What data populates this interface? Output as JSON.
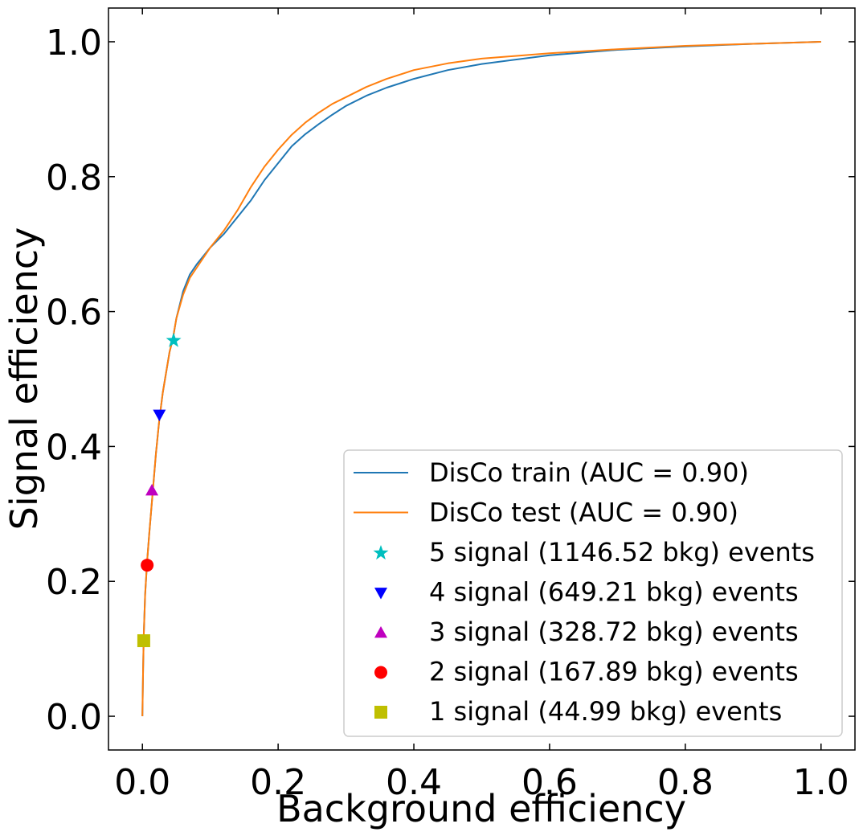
{
  "chart_data": {
    "type": "line",
    "xlabel": "Background efficiency",
    "ylabel": "Signal efficiency",
    "xlim": [
      -0.05,
      1.05
    ],
    "ylim": [
      -0.05,
      1.05
    ],
    "xticks": [
      "0.0",
      "0.2",
      "0.4",
      "0.6",
      "0.8",
      "1.0"
    ],
    "yticks": [
      "0.0",
      "0.2",
      "0.4",
      "0.6",
      "0.8",
      "1.0"
    ],
    "grid": false,
    "legend_position": "lower-right",
    "series": [
      {
        "name": "DisCo train (AUC = 0.90)",
        "color": "#1f77b4",
        "x": [
          0.0,
          0.001,
          0.002,
          0.004,
          0.007,
          0.01,
          0.015,
          0.02,
          0.025,
          0.03,
          0.035,
          0.04,
          0.045,
          0.05,
          0.06,
          0.07,
          0.08,
          0.1,
          0.12,
          0.14,
          0.16,
          0.18,
          0.2,
          0.22,
          0.24,
          0.26,
          0.28,
          0.3,
          0.33,
          0.36,
          0.4,
          0.45,
          0.5,
          0.6,
          0.7,
          0.8,
          0.9,
          1.0
        ],
        "y": [
          0.0,
          0.07,
          0.12,
          0.18,
          0.23,
          0.27,
          0.33,
          0.39,
          0.44,
          0.48,
          0.51,
          0.54,
          0.56,
          0.59,
          0.63,
          0.655,
          0.67,
          0.695,
          0.715,
          0.74,
          0.765,
          0.795,
          0.82,
          0.845,
          0.863,
          0.878,
          0.892,
          0.905,
          0.92,
          0.932,
          0.945,
          0.958,
          0.967,
          0.98,
          0.988,
          0.993,
          0.997,
          1.0
        ]
      },
      {
        "name": "DisCo test (AUC = 0.90)",
        "color": "#ff7f0e",
        "x": [
          0.0,
          0.001,
          0.002,
          0.004,
          0.007,
          0.01,
          0.015,
          0.02,
          0.025,
          0.03,
          0.035,
          0.04,
          0.045,
          0.05,
          0.06,
          0.07,
          0.08,
          0.1,
          0.12,
          0.14,
          0.16,
          0.18,
          0.2,
          0.22,
          0.24,
          0.26,
          0.28,
          0.3,
          0.33,
          0.36,
          0.4,
          0.45,
          0.5,
          0.6,
          0.7,
          0.8,
          0.9,
          1.0
        ],
        "y": [
          0.0,
          0.07,
          0.12,
          0.18,
          0.23,
          0.27,
          0.33,
          0.39,
          0.44,
          0.48,
          0.51,
          0.54,
          0.56,
          0.59,
          0.625,
          0.65,
          0.665,
          0.695,
          0.72,
          0.75,
          0.785,
          0.815,
          0.84,
          0.862,
          0.88,
          0.895,
          0.908,
          0.918,
          0.933,
          0.945,
          0.958,
          0.968,
          0.975,
          0.983,
          0.989,
          0.994,
          0.997,
          1.0
        ]
      }
    ],
    "markers": [
      {
        "label": "5 signal (1146.52 bkg) events",
        "x": 0.046,
        "y": 0.557,
        "shape": "star",
        "color": "#00bfbf"
      },
      {
        "label": "4 signal (649.21 bkg) events",
        "x": 0.025,
        "y": 0.447,
        "shape": "triangle-down",
        "color": "#0000ff"
      },
      {
        "label": "3 signal (328.72 bkg) events",
        "x": 0.014,
        "y": 0.335,
        "shape": "triangle-up",
        "color": "#bf00bf"
      },
      {
        "label": "2 signal (167.89 bkg) events",
        "x": 0.007,
        "y": 0.224,
        "shape": "circle",
        "color": "#ff0000"
      },
      {
        "label": "1 signal (44.99 bkg) events",
        "x": 0.002,
        "y": 0.112,
        "shape": "square",
        "color": "#bfbf00"
      }
    ]
  }
}
